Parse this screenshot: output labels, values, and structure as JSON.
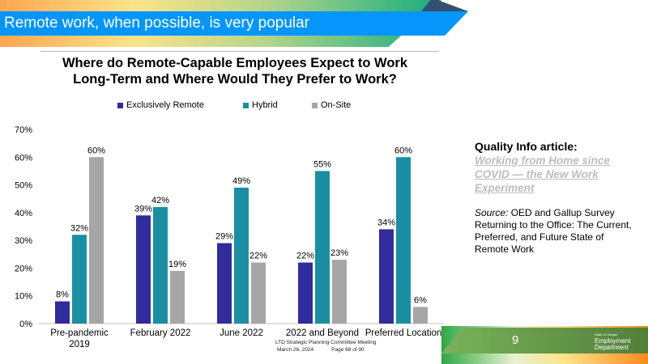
{
  "header": {
    "title": "Remote work, when possible, is very popular"
  },
  "chart_data": {
    "type": "bar",
    "title": [
      "Where do Remote-Capable Employees Expect to Work",
      "Long-Term and Where Would They Prefer to Work?"
    ],
    "categories": [
      [
        "Pre-pandemic",
        "2019"
      ],
      [
        "February 2022"
      ],
      [
        "June 2022"
      ],
      [
        "2022 and Beyond"
      ],
      [
        "Preferred Location"
      ]
    ],
    "series": [
      {
        "name": "Exclusively Remote",
        "color": "#312c9c",
        "values": [
          8,
          39,
          29,
          22,
          34
        ]
      },
      {
        "name": "Hybrid",
        "color": "#1a8fa3",
        "values": [
          32,
          42,
          49,
          55,
          60
        ]
      },
      {
        "name": "On-Site",
        "color": "#a6a6a6",
        "values": [
          60,
          19,
          22,
          23,
          6
        ]
      }
    ],
    "ylim": [
      0,
      70
    ],
    "yticks": [
      "0%",
      "10%",
      "20%",
      "30%",
      "40%",
      "50%",
      "60%",
      "70%"
    ],
    "legend": "top"
  },
  "side": {
    "heading": "Quality Info article:",
    "link": "Working from Home since COVID — the New Work Experiment",
    "source_label": "Source:",
    "source_text": " OED and Gallup Survey Returning to the Office: The Current, Preferred, and Future State of Remote Work"
  },
  "footer": {
    "line1": "LTD Strategic Planning Committee Meeting",
    "date": "March 26, 2024",
    "page": "Page 68 of 90"
  },
  "slide_number": "9",
  "logo": {
    "small": "State of Oregon",
    "l1": "Employment",
    "l2": "Department"
  }
}
